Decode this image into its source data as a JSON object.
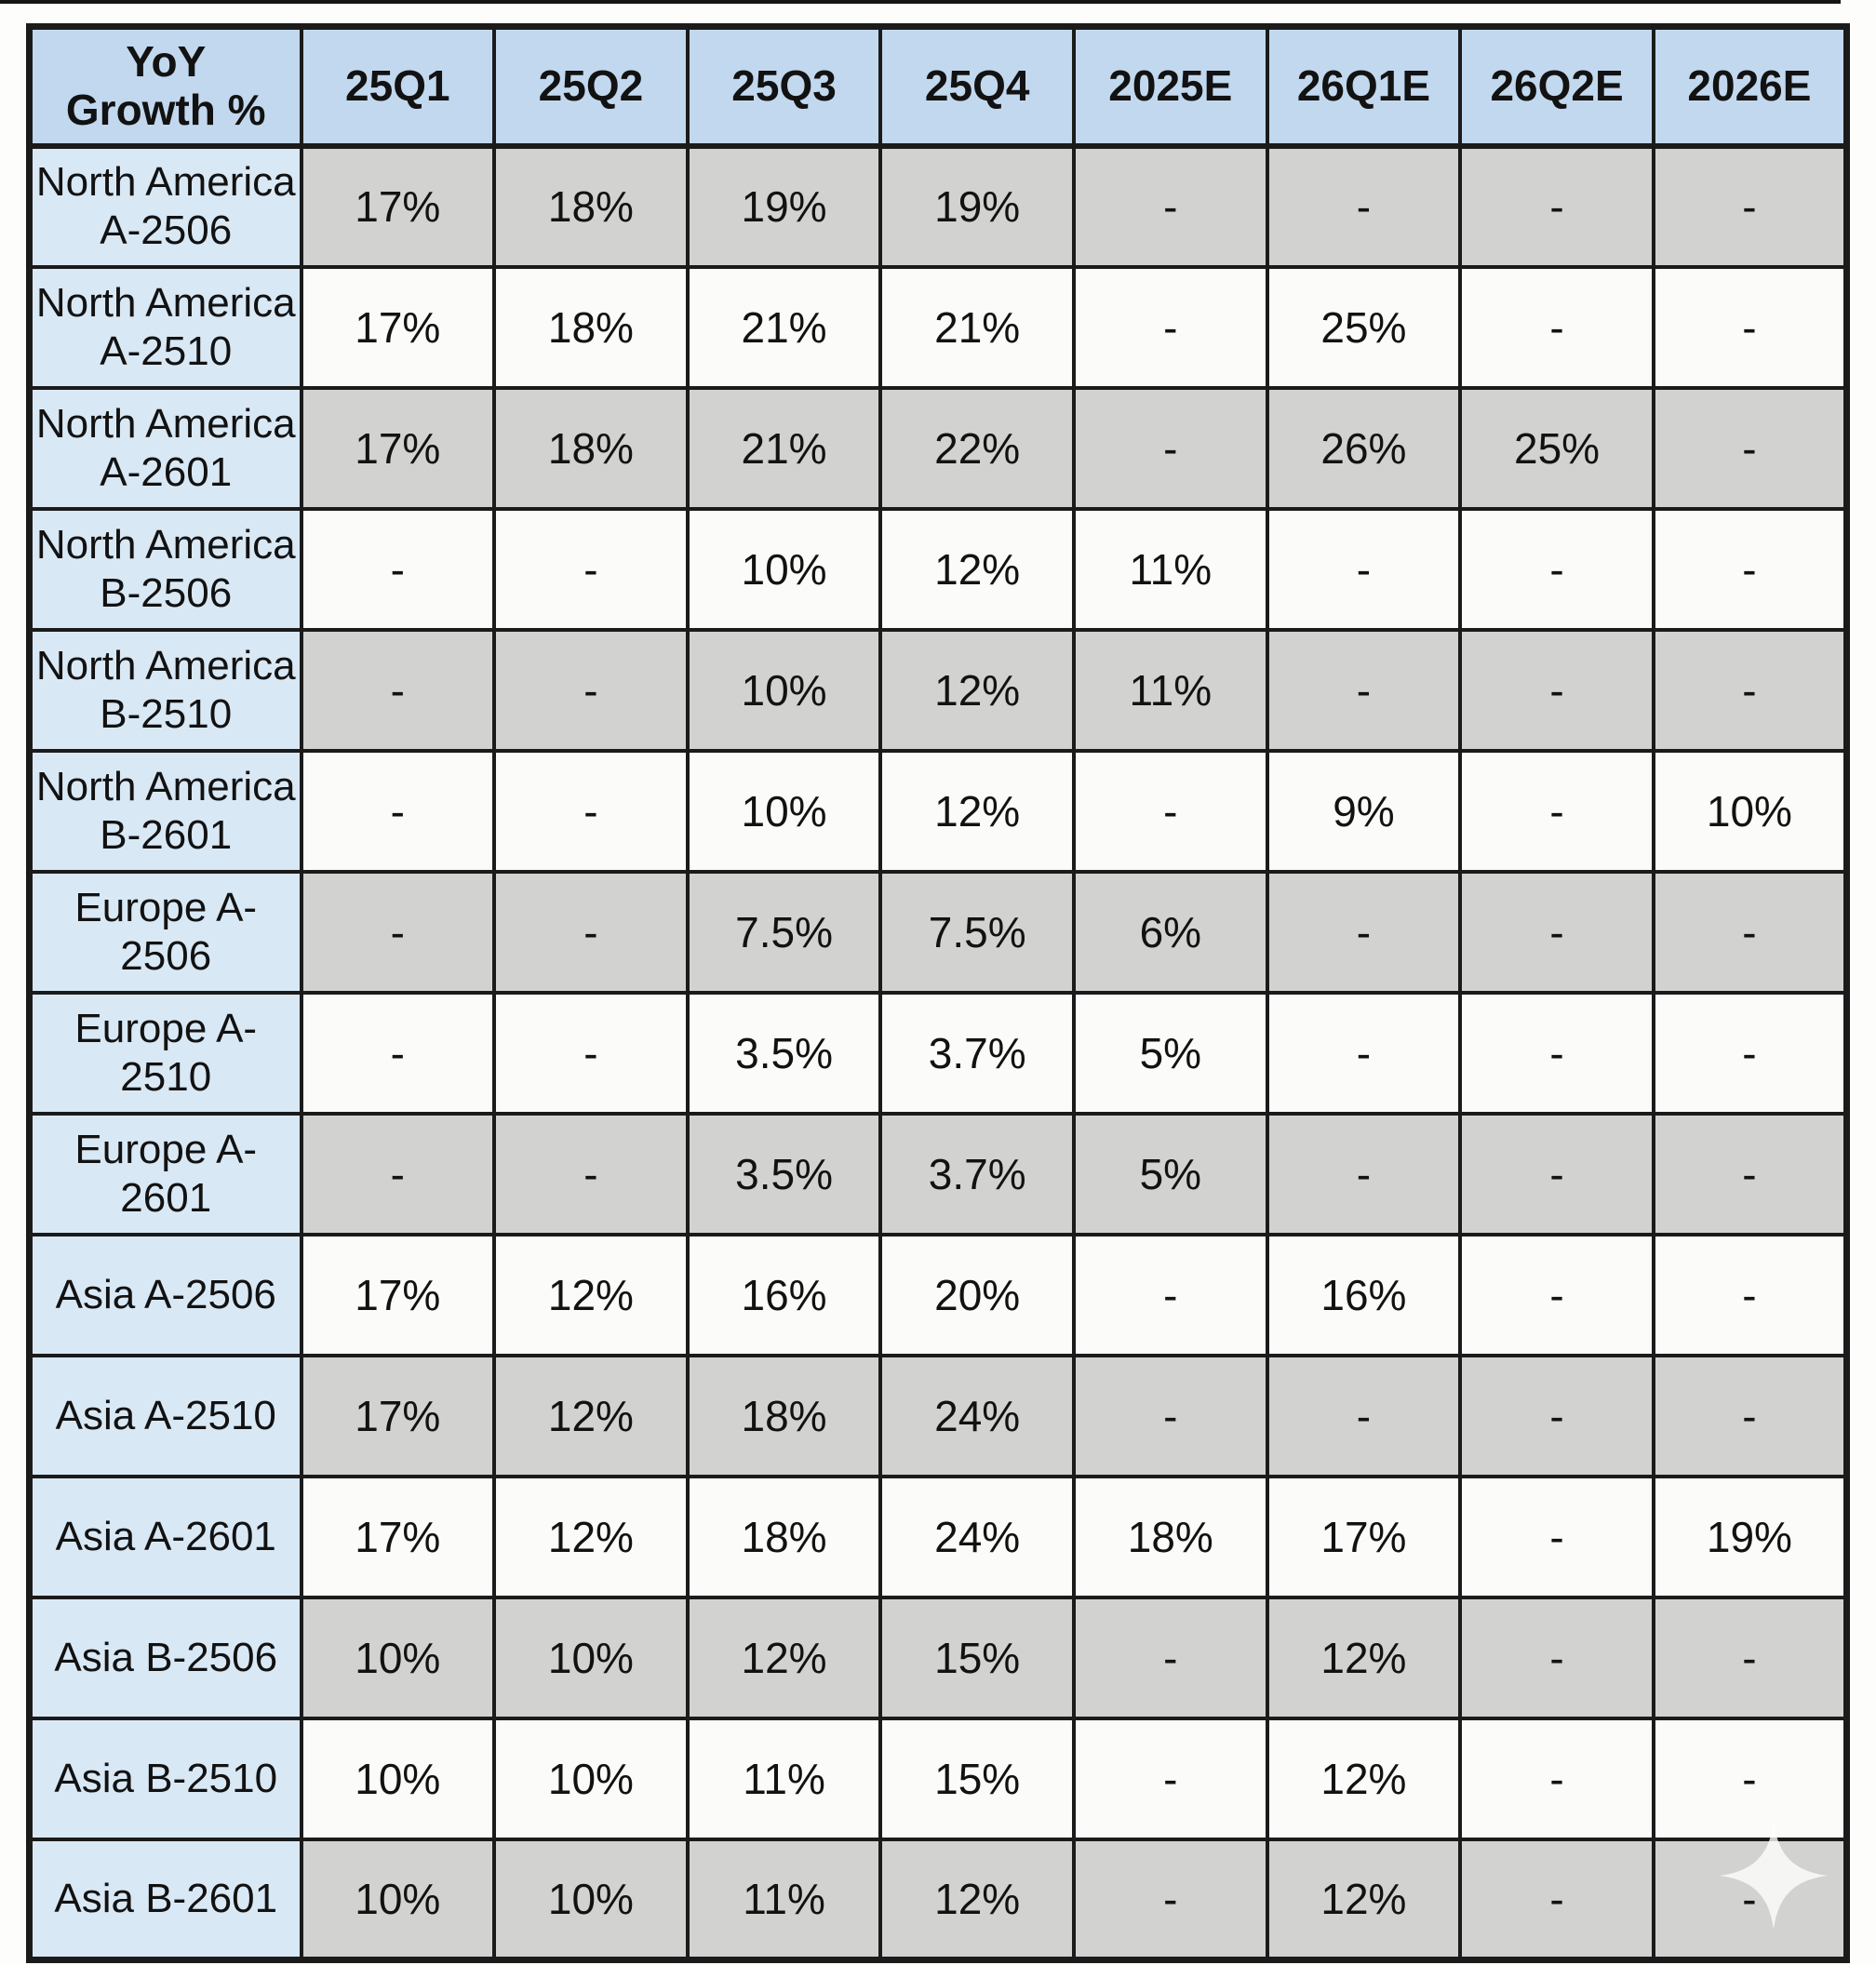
{
  "colors": {
    "header_bg": "#c2d8ee",
    "label_bg": "#d9e8f5",
    "row_gray": "#d2d2d0",
    "row_white": "#fbfbf9",
    "border": "#1b1b1b"
  },
  "watermark": {
    "icon": "sparkle-icon"
  },
  "chart_data": {
    "type": "table",
    "title": "YoY Growth %",
    "columns": [
      "YoY\nGrowth %",
      "25Q1",
      "25Q2",
      "25Q3",
      "25Q4",
      "2025E",
      "26Q1E",
      "26Q2E",
      "2026E"
    ],
    "rows": [
      {
        "label": "North America\nA-2506",
        "values": [
          "17%",
          "18%",
          "19%",
          "19%",
          "-",
          "-",
          "-",
          "-"
        ]
      },
      {
        "label": "North America\nA-2510",
        "values": [
          "17%",
          "18%",
          "21%",
          "21%",
          "-",
          "25%",
          "-",
          "-"
        ]
      },
      {
        "label": "North America\nA-2601",
        "values": [
          "17%",
          "18%",
          "21%",
          "22%",
          "-",
          "26%",
          "25%",
          "-"
        ]
      },
      {
        "label": "North America\nB-2506",
        "values": [
          "-",
          "-",
          "10%",
          "12%",
          "11%",
          "-",
          "-",
          "-"
        ]
      },
      {
        "label": "North America\nB-2510",
        "values": [
          "-",
          "-",
          "10%",
          "12%",
          "11%",
          "-",
          "-",
          "-"
        ]
      },
      {
        "label": "North America\nB-2601",
        "values": [
          "-",
          "-",
          "10%",
          "12%",
          "-",
          "9%",
          "-",
          "10%"
        ]
      },
      {
        "label": "Europe A-2506",
        "values": [
          "-",
          "-",
          "7.5%",
          "7.5%",
          "6%",
          "-",
          "-",
          "-"
        ]
      },
      {
        "label": "Europe A-2510",
        "values": [
          "-",
          "-",
          "3.5%",
          "3.7%",
          "5%",
          "-",
          "-",
          "-"
        ]
      },
      {
        "label": "Europe A-2601",
        "values": [
          "-",
          "-",
          "3.5%",
          "3.7%",
          "5%",
          "-",
          "-",
          "-"
        ]
      },
      {
        "label": "Asia A-2506",
        "values": [
          "17%",
          "12%",
          "16%",
          "20%",
          "-",
          "16%",
          "-",
          "-"
        ]
      },
      {
        "label": "Asia A-2510",
        "values": [
          "17%",
          "12%",
          "18%",
          "24%",
          "-",
          "-",
          "-",
          "-"
        ]
      },
      {
        "label": "Asia A-2601",
        "values": [
          "17%",
          "12%",
          "18%",
          "24%",
          "18%",
          "17%",
          "-",
          "19%"
        ]
      },
      {
        "label": "Asia B-2506",
        "values": [
          "10%",
          "10%",
          "12%",
          "15%",
          "-",
          "12%",
          "-",
          "-"
        ]
      },
      {
        "label": "Asia B-2510",
        "values": [
          "10%",
          "10%",
          "11%",
          "15%",
          "-",
          "12%",
          "-",
          "-"
        ]
      },
      {
        "label": "Asia B-2601",
        "values": [
          "10%",
          "10%",
          "11%",
          "12%",
          "-",
          "12%",
          "-",
          "-"
        ]
      }
    ],
    "row_shading": [
      "gray",
      "white",
      "gray",
      "white",
      "gray",
      "white",
      "gray",
      "white",
      "gray",
      "white",
      "gray",
      "white",
      "gray",
      "white",
      "gray"
    ],
    "legend_position": "none",
    "grid": true
  }
}
